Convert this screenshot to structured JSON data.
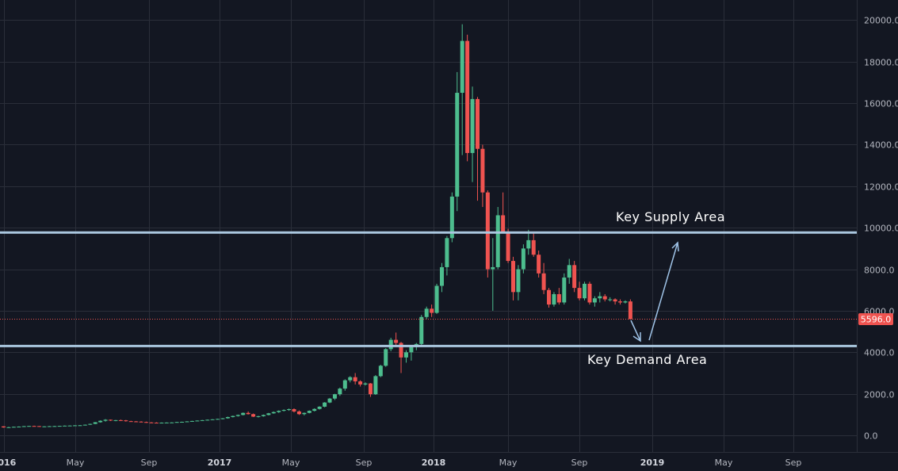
{
  "chart_data": {
    "type": "candlestick",
    "timeframe": "weekly",
    "x_axis": {
      "ticks": [
        {
          "label": "2016",
          "year_start": true
        },
        {
          "label": "May",
          "year_start": false
        },
        {
          "label": "Sep",
          "year_start": false
        },
        {
          "label": "2017",
          "year_start": true
        },
        {
          "label": "May",
          "year_start": false
        },
        {
          "label": "Sep",
          "year_start": false
        },
        {
          "label": "2018",
          "year_start": true
        },
        {
          "label": "May",
          "year_start": false
        },
        {
          "label": "Sep",
          "year_start": false
        },
        {
          "label": "2019",
          "year_start": true
        },
        {
          "label": "May",
          "year_start": false
        },
        {
          "label": "Sep",
          "year_start": false
        }
      ]
    },
    "y_axis": {
      "ticks": [
        "0.0",
        "2000.0",
        "4000.0",
        "6000.0",
        "8000.0",
        "10000.0",
        "12000.0",
        "14000.0",
        "16000.0",
        "18000.0",
        "20000.0"
      ],
      "range": [
        -700,
        20800
      ]
    },
    "current_price": {
      "label": "5596.0",
      "value": 5596
    },
    "levels": [
      {
        "name": "Key Supply Area",
        "value": 9770
      },
      {
        "name": "Key Demand Area",
        "value": 4300
      }
    ],
    "annotations": {
      "supply_label": "Key Supply Area",
      "demand_label": "Key Demand Area"
    },
    "colors": {
      "background": "#131722",
      "up": "#26a69a",
      "up_fill": "#4dbd8e",
      "down": "#ef5350",
      "level_line": "#aac7df",
      "grid": "#2a2e39",
      "arrow": "#9fc3e7"
    },
    "candles_ohlc": [
      [
        430,
        440,
        370,
        380
      ],
      [
        380,
        410,
        360,
        390
      ],
      [
        390,
        420,
        380,
        410
      ],
      [
        410,
        430,
        395,
        420
      ],
      [
        420,
        450,
        410,
        440
      ],
      [
        440,
        460,
        425,
        450
      ],
      [
        450,
        465,
        430,
        445
      ],
      [
        445,
        450,
        410,
        420
      ],
      [
        420,
        440,
        400,
        430
      ],
      [
        430,
        450,
        420,
        440
      ],
      [
        440,
        455,
        430,
        445
      ],
      [
        445,
        460,
        435,
        455
      ],
      [
        455,
        475,
        440,
        465
      ],
      [
        465,
        480,
        450,
        470
      ],
      [
        470,
        490,
        460,
        480
      ],
      [
        480,
        495,
        465,
        485
      ],
      [
        485,
        520,
        475,
        510
      ],
      [
        510,
        560,
        500,
        550
      ],
      [
        550,
        640,
        540,
        630
      ],
      [
        630,
        720,
        610,
        700
      ],
      [
        700,
        780,
        660,
        750
      ],
      [
        750,
        760,
        690,
        710
      ],
      [
        710,
        740,
        680,
        730
      ],
      [
        730,
        760,
        700,
        720
      ],
      [
        720,
        740,
        660,
        680
      ],
      [
        680,
        700,
        650,
        670
      ],
      [
        670,
        690,
        640,
        660
      ],
      [
        660,
        680,
        620,
        640
      ],
      [
        640,
        660,
        600,
        620
      ],
      [
        620,
        640,
        590,
        610
      ],
      [
        610,
        630,
        580,
        600
      ],
      [
        600,
        620,
        590,
        610
      ],
      [
        610,
        625,
        595,
        615
      ],
      [
        615,
        630,
        600,
        620
      ],
      [
        620,
        650,
        610,
        640
      ],
      [
        640,
        660,
        625,
        650
      ],
      [
        650,
        680,
        640,
        670
      ],
      [
        670,
        700,
        660,
        690
      ],
      [
        690,
        720,
        680,
        710
      ],
      [
        710,
        740,
        700,
        730
      ],
      [
        730,
        760,
        720,
        750
      ],
      [
        750,
        780,
        740,
        770
      ],
      [
        770,
        800,
        760,
        790
      ],
      [
        790,
        830,
        770,
        820
      ],
      [
        820,
        900,
        800,
        880
      ],
      [
        880,
        950,
        860,
        930
      ],
      [
        930,
        1000,
        900,
        980
      ],
      [
        980,
        1100,
        960,
        1080
      ],
      [
        1080,
        1150,
        1000,
        1020
      ],
      [
        1020,
        1050,
        880,
        900
      ],
      [
        900,
        940,
        860,
        920
      ],
      [
        920,
        1000,
        900,
        980
      ],
      [
        980,
        1080,
        960,
        1060
      ],
      [
        1060,
        1150,
        1040,
        1120
      ],
      [
        1120,
        1200,
        1080,
        1180
      ],
      [
        1180,
        1250,
        1150,
        1220
      ],
      [
        1220,
        1290,
        1180,
        1260
      ],
      [
        1260,
        1300,
        1100,
        1150
      ],
      [
        1150,
        1200,
        980,
        1020
      ],
      [
        1020,
        1100,
        960,
        1080
      ],
      [
        1080,
        1200,
        1060,
        1180
      ],
      [
        1180,
        1300,
        1150,
        1270
      ],
      [
        1270,
        1400,
        1240,
        1380
      ],
      [
        1380,
        1600,
        1350,
        1580
      ],
      [
        1580,
        1800,
        1550,
        1770
      ],
      [
        1770,
        2000,
        1700,
        1980
      ],
      [
        1980,
        2300,
        1900,
        2250
      ],
      [
        2250,
        2700,
        2150,
        2650
      ],
      [
        2650,
        2850,
        2550,
        2800
      ],
      [
        2800,
        3000,
        2450,
        2600
      ],
      [
        2600,
        2650,
        2350,
        2450
      ],
      [
        2450,
        2550,
        2400,
        2500
      ],
      [
        2500,
        2520,
        1850,
        1980
      ],
      [
        1980,
        2900,
        1950,
        2850
      ],
      [
        2850,
        3400,
        2800,
        3350
      ],
      [
        3350,
        4200,
        3300,
        4150
      ],
      [
        4150,
        4700,
        4050,
        4600
      ],
      [
        4600,
        4950,
        4300,
        4450
      ],
      [
        4450,
        4500,
        3000,
        3750
      ],
      [
        3750,
        4100,
        3500,
        4000
      ],
      [
        4000,
        4300,
        3600,
        4250
      ],
      [
        4250,
        4450,
        4100,
        4400
      ],
      [
        4400,
        5800,
        4350,
        5700
      ],
      [
        5700,
        6200,
        5600,
        6100
      ],
      [
        6100,
        6300,
        5700,
        5900
      ],
      [
        5900,
        7300,
        5850,
        7200
      ],
      [
        7200,
        8300,
        6900,
        8100
      ],
      [
        8100,
        9600,
        7700,
        9500
      ],
      [
        9500,
        11700,
        9300,
        11500
      ],
      [
        11500,
        17500,
        10800,
        16500
      ],
      [
        16500,
        19800,
        13500,
        19000
      ],
      [
        19000,
        19300,
        13200,
        13600
      ],
      [
        13600,
        16800,
        12200,
        16200
      ],
      [
        16200,
        16300,
        11300,
        13800
      ],
      [
        13800,
        14000,
        11000,
        11700
      ],
      [
        11700,
        11800,
        7600,
        8000
      ],
      [
        8000,
        9500,
        6000,
        8100
      ],
      [
        8100,
        11000,
        8000,
        10600
      ],
      [
        10600,
        11700,
        9800,
        9800
      ],
      [
        9800,
        9950,
        8300,
        8400
      ],
      [
        8400,
        8600,
        6500,
        6900
      ],
      [
        6900,
        8200,
        6500,
        8000
      ],
      [
        8000,
        9200,
        7800,
        9000
      ],
      [
        9000,
        9900,
        8700,
        9400
      ],
      [
        9400,
        9800,
        8600,
        8700
      ],
      [
        8700,
        8900,
        7600,
        7800
      ],
      [
        7800,
        8300,
        6800,
        7000
      ],
      [
        7000,
        7100,
        6150,
        6300
      ],
      [
        6300,
        6900,
        6200,
        6800
      ],
      [
        6800,
        7100,
        6300,
        6400
      ],
      [
        6400,
        7800,
        6300,
        7600
      ],
      [
        7600,
        8500,
        7300,
        8200
      ],
      [
        8200,
        8400,
        6900,
        7100
      ],
      [
        7100,
        7400,
        6500,
        6600
      ],
      [
        6600,
        7400,
        6500,
        7300
      ],
      [
        7300,
        7400,
        6300,
        6400
      ],
      [
        6400,
        6700,
        6200,
        6600
      ],
      [
        6600,
        6900,
        6400,
        6700
      ],
      [
        6700,
        6800,
        6450,
        6550
      ],
      [
        6550,
        6650,
        6450,
        6550
      ],
      [
        6550,
        6600,
        6300,
        6450
      ],
      [
        6450,
        6550,
        6300,
        6400
      ],
      [
        6400,
        6500,
        6350,
        6450
      ],
      [
        6450,
        6550,
        5900,
        5596
      ]
    ]
  }
}
